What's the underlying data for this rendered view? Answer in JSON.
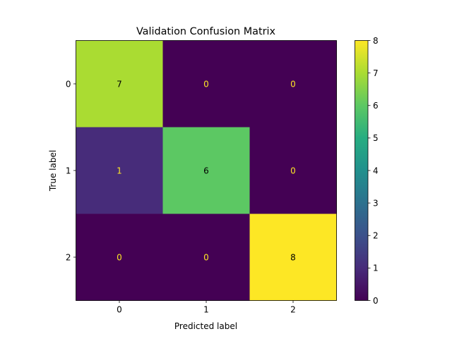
{
  "chart_data": {
    "type": "heatmap",
    "title": "Validation Confusion Matrix",
    "xlabel": "Predicted label",
    "ylabel": "True label",
    "x_categories": [
      "0",
      "1",
      "2"
    ],
    "y_categories": [
      "0",
      "1",
      "2"
    ],
    "values": [
      [
        7,
        0,
        0
      ],
      [
        1,
        6,
        0
      ],
      [
        0,
        0,
        8
      ]
    ],
    "colormap": "viridis",
    "colorbar": {
      "min": 0,
      "max": 8,
      "ticks": [
        "0",
        "1",
        "2",
        "3",
        "4",
        "5",
        "6",
        "7",
        "8"
      ]
    },
    "text_colors": {
      "dark_cell": "#fde725",
      "light_cell": "#000000"
    },
    "grid": false
  }
}
